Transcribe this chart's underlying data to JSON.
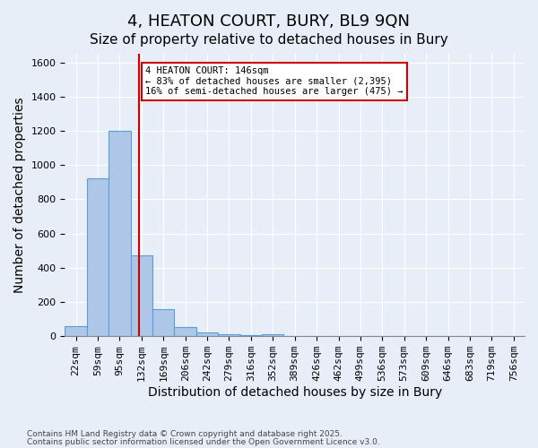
{
  "title1": "4, HEATON COURT, BURY, BL9 9QN",
  "title2": "Size of property relative to detached houses in Bury",
  "xlabel": "Distribution of detached houses by size in Bury",
  "ylabel": "Number of detached properties",
  "bins": [
    "22sqm",
    "59sqm",
    "95sqm",
    "132sqm",
    "169sqm",
    "206sqm",
    "242sqm",
    "279sqm",
    "316sqm",
    "352sqm",
    "389sqm",
    "426sqm",
    "462sqm",
    "499sqm",
    "536sqm",
    "573sqm",
    "609sqm",
    "646sqm",
    "683sqm",
    "719sqm",
    "756sqm"
  ],
  "values": [
    60,
    920,
    1200,
    470,
    160,
    55,
    20,
    10,
    5,
    10,
    0,
    0,
    0,
    0,
    0,
    0,
    0,
    0,
    0,
    0,
    0
  ],
  "bar_color": "#aec6e8",
  "bar_edge_color": "#5a9fd4",
  "bg_color": "#e8eef8",
  "vline_color": "#cc0000",
  "annotation_text": "4 HEATON COURT: 146sqm\n← 83% of detached houses are smaller (2,395)\n16% of semi-detached houses are larger (475) →",
  "annotation_box_color": "#cc0000",
  "ylim": [
    0,
    1650
  ],
  "yticks": [
    0,
    200,
    400,
    600,
    800,
    1000,
    1200,
    1400,
    1600
  ],
  "footer1": "Contains HM Land Registry data © Crown copyright and database right 2025.",
  "footer2": "Contains public sector information licensed under the Open Government Licence v3.0.",
  "title_fontsize": 13,
  "subtitle_fontsize": 11,
  "axis_label_fontsize": 10,
  "tick_fontsize": 8,
  "vline_x": 2.878
}
